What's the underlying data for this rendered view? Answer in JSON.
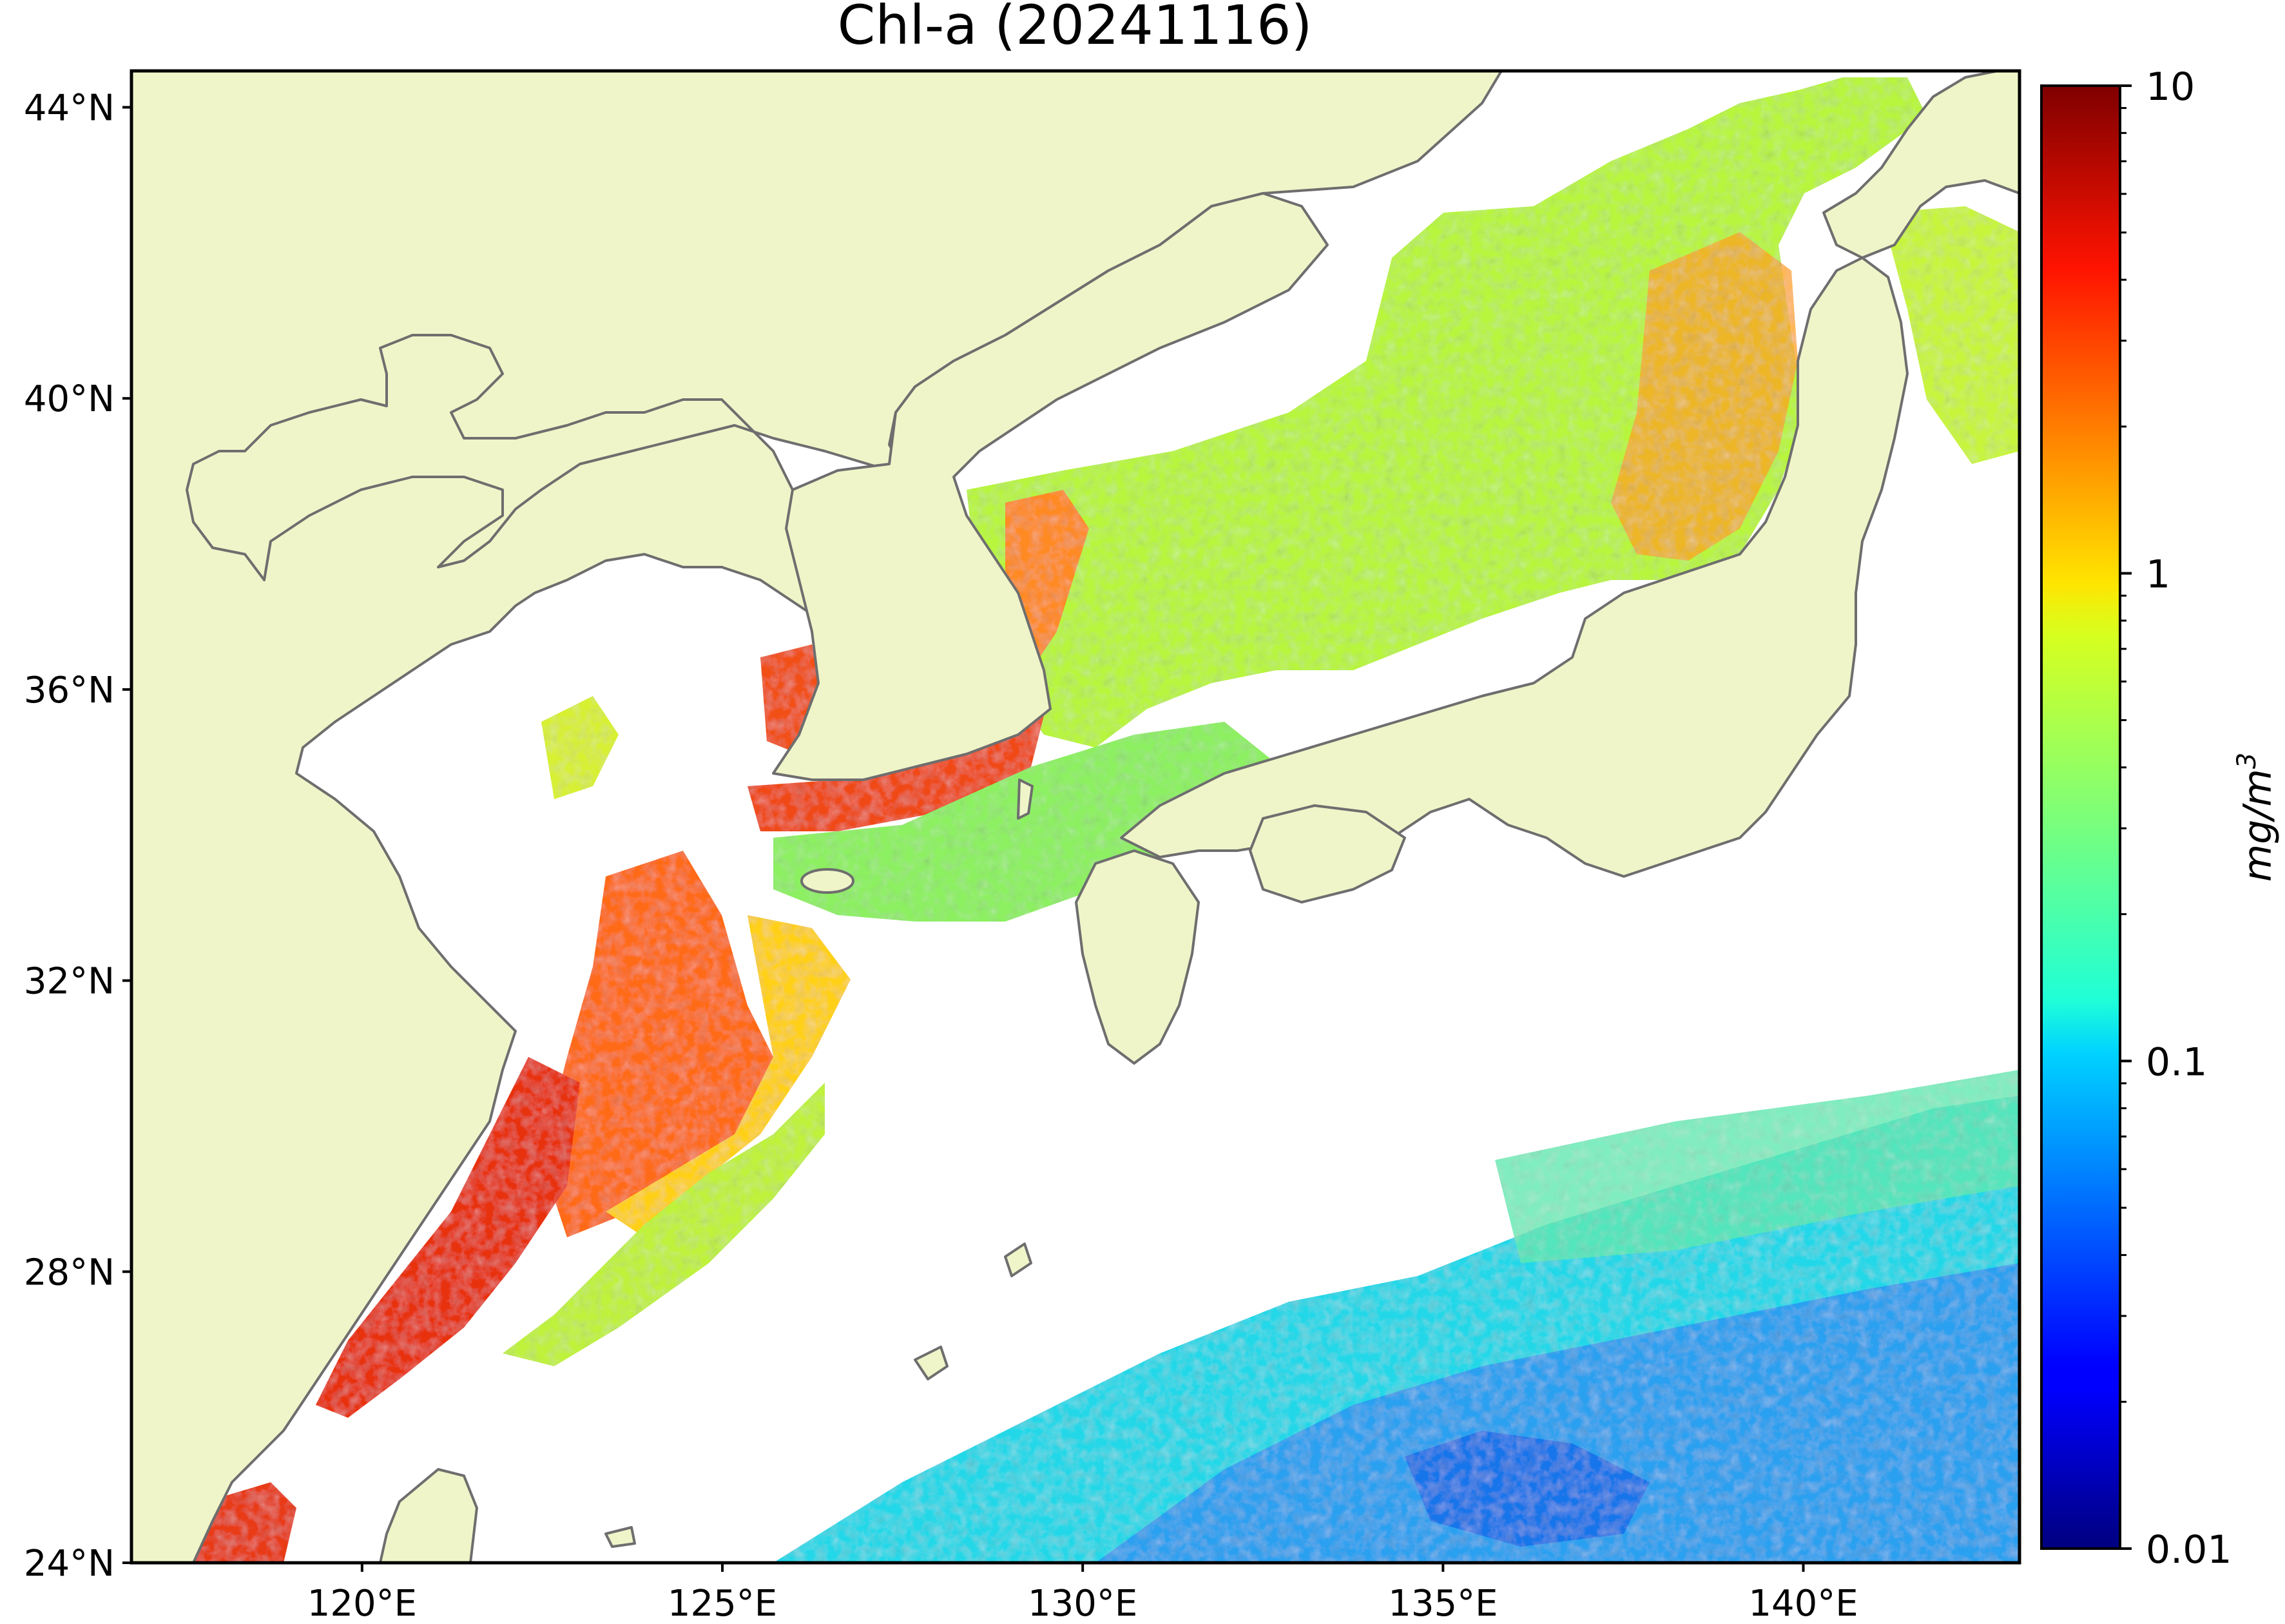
{
  "figure": {
    "title": "Chl-a (20241116)"
  },
  "map": {
    "extent": {
      "lon_min": 116.8,
      "lon_max": 143.0,
      "lat_min": 24.0,
      "lat_max": 44.5
    },
    "lat_ticks": [
      {
        "value": 44,
        "label": "44°N"
      },
      {
        "value": 40,
        "label": "40°N"
      },
      {
        "value": 36,
        "label": "36°N"
      },
      {
        "value": 32,
        "label": "32°N"
      },
      {
        "value": 28,
        "label": "28°N"
      },
      {
        "value": 24,
        "label": "24°N"
      }
    ],
    "lon_ticks": [
      {
        "value": 120,
        "label": "120°E"
      },
      {
        "value": 125,
        "label": "125°E"
      },
      {
        "value": 130,
        "label": "130°E"
      },
      {
        "value": 135,
        "label": "135°E"
      },
      {
        "value": 140,
        "label": "140°E"
      }
    ],
    "land_color": "#f0f5c9",
    "coast_color": "#6e6e6e",
    "nodata_color": "#ffffff"
  },
  "colorbar": {
    "scale": "log",
    "vmin": 0.01,
    "vmax": 10,
    "colormap": "jet",
    "unit_label": "mg/m",
    "unit_exponent": "3",
    "ticks": [
      {
        "value": 10,
        "label": "10"
      },
      {
        "value": 1,
        "label": "1"
      },
      {
        "value": 0.1,
        "label": "0.1"
      },
      {
        "value": 0.01,
        "label": "0.01"
      }
    ]
  }
}
